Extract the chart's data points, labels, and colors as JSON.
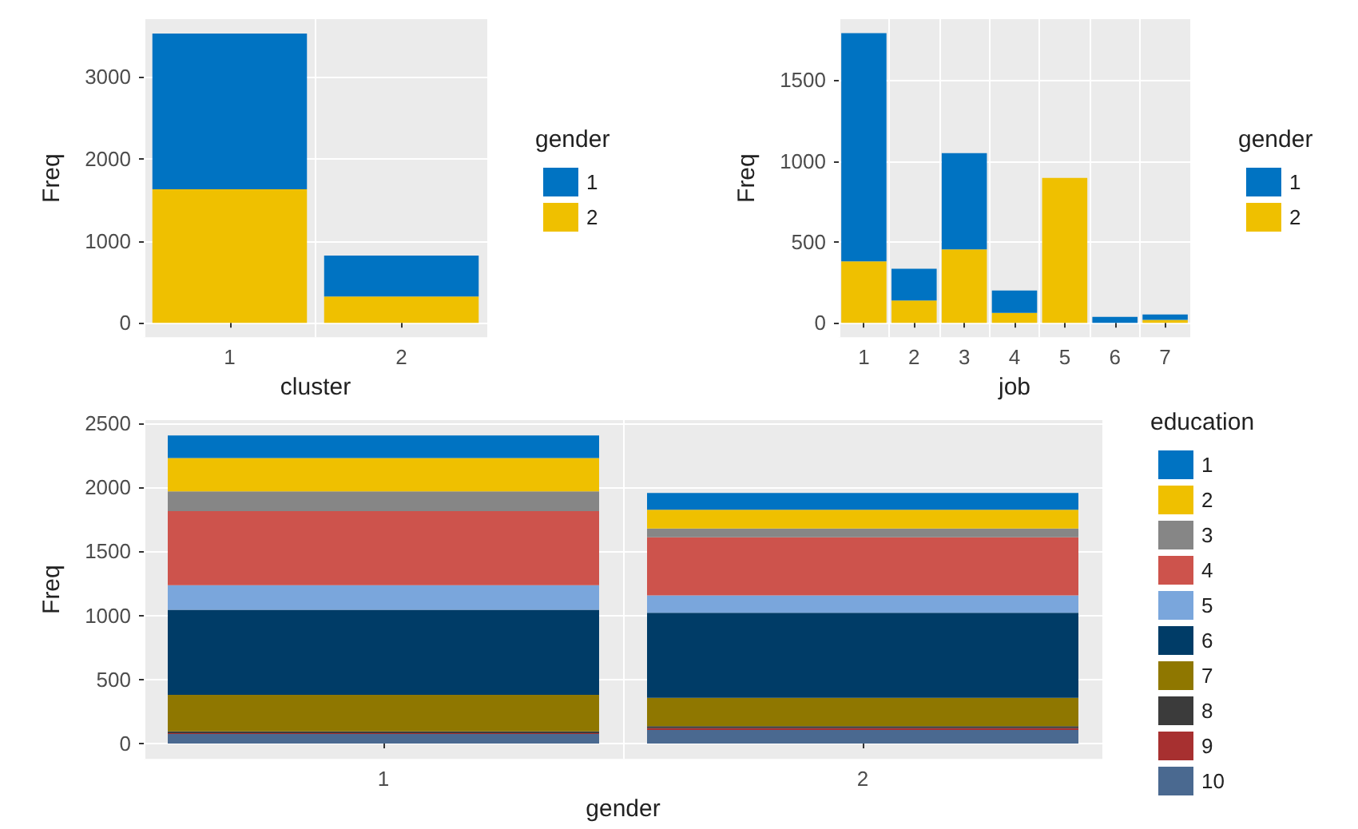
{
  "chart_data": [
    {
      "type": "bar",
      "stacked": true,
      "categories": [
        "1",
        "2"
      ],
      "xlabel": "cluster",
      "ylabel": "Freq",
      "legend_title": "gender",
      "legend": "right",
      "grid": true,
      "ylim": [
        -176,
        3706
      ],
      "yticks": [
        0,
        1000,
        2000,
        3000
      ],
      "series": [
        {
          "name": "2",
          "color": "#efc000",
          "values": [
            1630,
            320
          ]
        },
        {
          "name": "1",
          "color": "#0073c2",
          "values": [
            1900,
            500
          ]
        }
      ]
    },
    {
      "type": "bar",
      "stacked": true,
      "categories": [
        "1",
        "2",
        "3",
        "4",
        "5",
        "6",
        "7"
      ],
      "xlabel": "job",
      "ylabel": "Freq",
      "legend_title": "gender",
      "legend": "right",
      "grid": true,
      "ylim": [
        -89,
        1877
      ],
      "yticks": [
        0,
        500,
        1000,
        1500
      ],
      "series": [
        {
          "name": "2",
          "color": "#efc000",
          "values": [
            380,
            138,
            454,
            61,
            896,
            0,
            18
          ]
        },
        {
          "name": "1",
          "color": "#0073c2",
          "values": [
            1410,
            196,
            595,
            138,
            0,
            37,
            34
          ]
        }
      ]
    },
    {
      "type": "bar",
      "stacked": true,
      "categories": [
        "1",
        "2"
      ],
      "xlabel": "gender",
      "ylabel": "Freq",
      "legend_title": "education",
      "legend": "right",
      "grid": true,
      "ylim": [
        -120,
        2524
      ],
      "yticks": [
        0,
        500,
        1000,
        1500,
        2000,
        2500
      ],
      "series": [
        {
          "name": "10",
          "color": "#4a6990",
          "values": [
            75,
            105
          ]
        },
        {
          "name": "9",
          "color": "#a73030",
          "values": [
            5,
            15
          ]
        },
        {
          "name": "8",
          "color": "#3b3b3b",
          "values": [
            15,
            15
          ]
        },
        {
          "name": "7",
          "color": "#8f7700",
          "values": [
            285,
            222
          ]
        },
        {
          "name": "6",
          "color": "#003c67",
          "values": [
            663,
            663
          ]
        },
        {
          "name": "5",
          "color": "#7aa6dc",
          "values": [
            193,
            136
          ]
        },
        {
          "name": "4",
          "color": "#cd534c",
          "values": [
            578,
            454
          ]
        },
        {
          "name": "3",
          "color": "#868686",
          "values": [
            153,
            68
          ]
        },
        {
          "name": "2",
          "color": "#efc000",
          "values": [
            261,
            147
          ]
        },
        {
          "name": "1",
          "color": "#0073c2",
          "values": [
            176,
            131
          ]
        }
      ]
    }
  ]
}
